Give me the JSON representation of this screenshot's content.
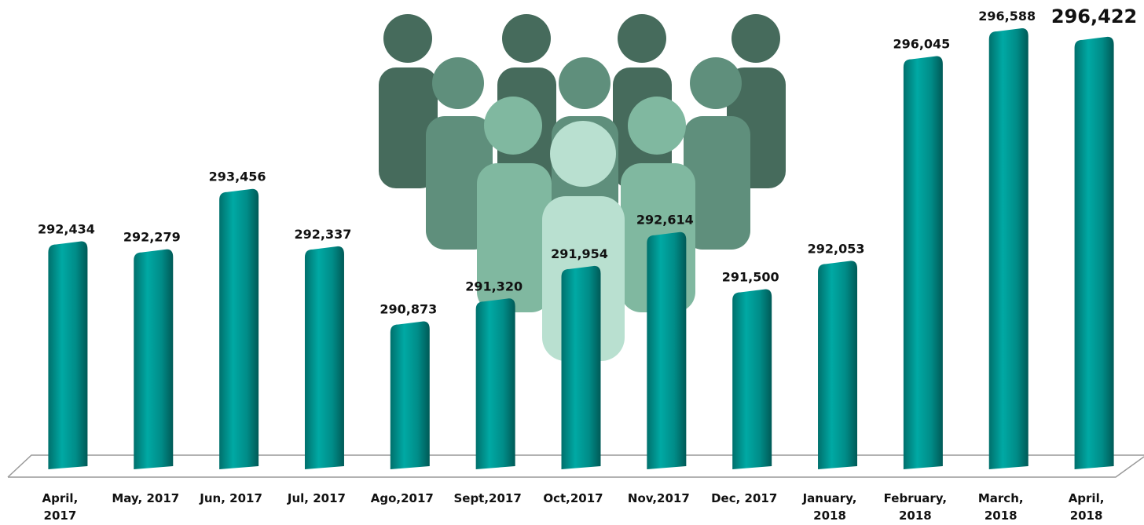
{
  "chart_data": {
    "type": "bar",
    "categories": [
      "April,\n2017",
      "May, 2017",
      "Jun, 2017",
      "Jul, 2017",
      "Ago,2017",
      "Sept,2017",
      "Oct,2017",
      "Nov,2017",
      "Dec, 2017",
      "January,\n2018",
      "February,\n2018",
      "March,\n2018",
      "April,\n2018"
    ],
    "values": [
      292434,
      292279,
      293456,
      292337,
      290873,
      291320,
      291954,
      292614,
      291500,
      292053,
      296045,
      296588,
      296422
    ],
    "value_labels": [
      "292,434",
      "292,279",
      "293,456",
      "292,337",
      "290,873",
      "291,320",
      "291,954",
      "292,614",
      "291,500",
      "292,053",
      "296,045",
      "296,588",
      "296,422"
    ],
    "color": "#009490",
    "ylim": [
      288050,
      297200
    ]
  }
}
